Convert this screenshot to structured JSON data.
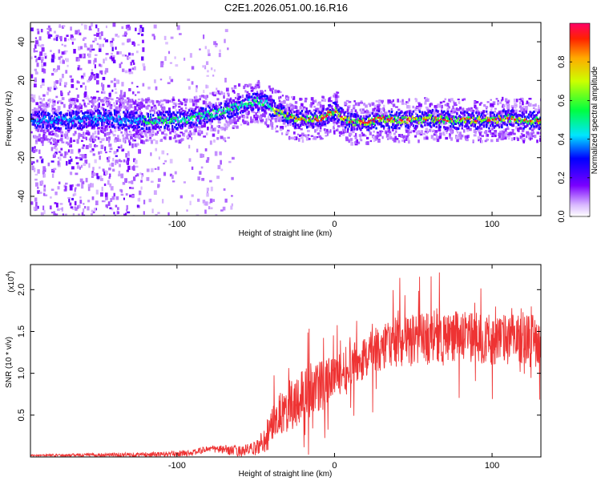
{
  "title": "C2E1.2026.051.00.16.R16",
  "chart_data": [
    {
      "type": "heatmap",
      "name": "spectrogram",
      "xlabel": "Height of straight line (km)",
      "ylabel": "Frequency (Hz)",
      "xlim": [
        -193,
        131
      ],
      "ylim": [
        -50,
        50
      ],
      "xticks": [
        -100,
        0,
        100
      ],
      "xtick_labels": [
        "-100",
        "0",
        "100"
      ],
      "yticks": [
        -40,
        -20,
        0,
        20,
        40
      ],
      "ytick_labels": [
        "-40",
        "-20",
        "0",
        "20",
        "40"
      ],
      "ridge": {
        "x": [
          -190,
          -170,
          -150,
          -130,
          -120,
          -110,
          -100,
          -90,
          -80,
          -70,
          -60,
          -50,
          -45,
          -40,
          -30,
          -20,
          -15,
          -10,
          -5,
          0,
          5,
          10,
          20,
          30,
          40,
          50,
          60,
          70,
          80,
          90,
          100,
          110,
          120,
          131
        ],
        "y": [
          0,
          0,
          1,
          0,
          0,
          0,
          0,
          1,
          3,
          5,
          8,
          10,
          9,
          6,
          2,
          0,
          1,
          0,
          3,
          5,
          1,
          -1,
          -1,
          1,
          0,
          0,
          1,
          0,
          0,
          0,
          0,
          1,
          0,
          0
        ]
      },
      "colorbar": {
        "label": "Normalized spectral amplitude",
        "range": [
          0,
          1
        ],
        "ticks": [
          0.0,
          0.2,
          0.4,
          0.6,
          0.8
        ],
        "tick_labels": [
          "0.0",
          "0.2",
          "0.4",
          "0.6",
          "0.8"
        ]
      }
    },
    {
      "type": "line",
      "name": "snr",
      "xlabel": "Height of straight line (km)",
      "ylabel": "SNR (10 * v/v)",
      "scale_label": "(x10",
      "scale_exponent": "4",
      "xlim": [
        -193,
        131
      ],
      "ylim": [
        0,
        2.3
      ],
      "xticks": [
        -100,
        0,
        100
      ],
      "xtick_labels": [
        "-100",
        "0",
        "100"
      ],
      "yticks": [
        0.5,
        1.0,
        1.5,
        2.0
      ],
      "ytick_labels": [
        "0.5",
        "1.0",
        "1.5",
        "2.0"
      ],
      "color": "#ee3333",
      "envelope": {
        "x": [
          -193,
          -110,
          -90,
          -80,
          -60,
          -50,
          -45,
          -40,
          -30,
          -20,
          -10,
          0,
          10,
          20,
          30,
          40,
          60,
          80,
          100,
          131
        ],
        "y": [
          0.02,
          0.03,
          0.05,
          0.1,
          0.07,
          0.1,
          0.2,
          0.35,
          0.6,
          0.75,
          0.85,
          0.95,
          1.1,
          1.2,
          1.3,
          1.38,
          1.42,
          1.45,
          1.4,
          1.42
        ]
      },
      "spread": {
        "x": [
          -193,
          -80,
          -50,
          -40,
          -20,
          0,
          40,
          131
        ],
        "y": [
          0.01,
          0.04,
          0.08,
          0.25,
          0.35,
          0.25,
          0.3,
          0.3
        ]
      }
    }
  ]
}
